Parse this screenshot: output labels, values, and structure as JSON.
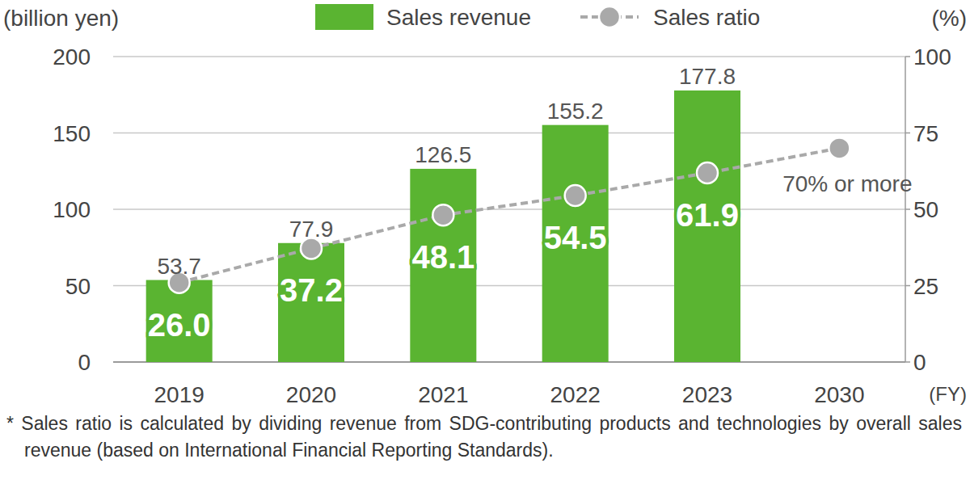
{
  "chart_data": {
    "type": "bar",
    "y_label": "(billion yen)",
    "y2_label": "(%)",
    "x_label": "(FY)",
    "footnote": "* Sales ratio is calculated by dividing revenue from SDG-contributing products and technologies by overall sales revenue (based on International Financial Reporting Standards).",
    "categories": [
      "2019",
      "2020",
      "2021",
      "2022",
      "2023",
      "2030"
    ],
    "series": [
      {
        "name": "Sales revenue",
        "type": "bar",
        "color": "#5ab431",
        "values": [
          53.7,
          77.9,
          126.5,
          155.2,
          177.8,
          null
        ]
      },
      {
        "name": "Sales ratio",
        "type": "line",
        "axis": "y2",
        "color": "#a9a9a9",
        "marker": "circle",
        "line_style": "dashed",
        "values": [
          26.0,
          37.2,
          48.1,
          54.5,
          61.9,
          70
        ],
        "value_labels": [
          "26.0",
          "37.2",
          "48.1",
          "54.5",
          "61.9",
          "70% or more"
        ]
      }
    ],
    "ylim": [
      0,
      200
    ],
    "yticks": [
      0,
      50,
      100,
      150,
      200
    ],
    "y2lim": [
      0,
      100
    ],
    "y2ticks": [
      0,
      25,
      50,
      75,
      100
    ],
    "grid": true,
    "legend": "top",
    "data_labels": true
  }
}
